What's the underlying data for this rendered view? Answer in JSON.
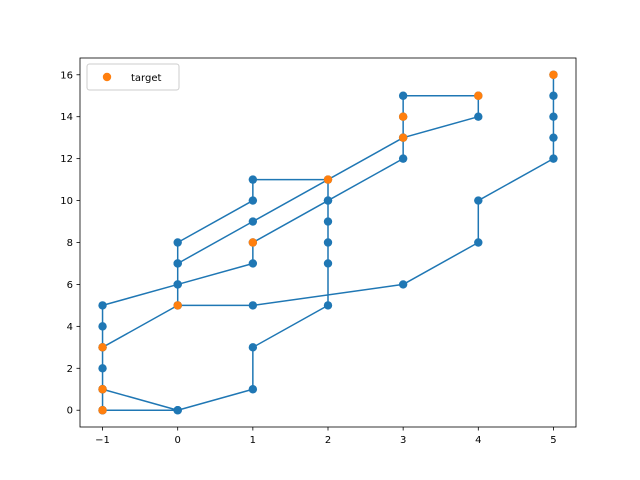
{
  "chart_data": {
    "type": "scatter",
    "xlim": [
      -1.3,
      5.3
    ],
    "ylim": [
      -0.8,
      16.8
    ],
    "xticks": [
      -1,
      0,
      1,
      2,
      3,
      4,
      5
    ],
    "yticks": [
      0,
      2,
      4,
      6,
      8,
      10,
      12,
      14,
      16
    ],
    "grid": false,
    "legend_position": "upper-left",
    "colors": {
      "path": "#1f77b4",
      "target": "#ff7f0e"
    },
    "series": [
      {
        "kind": "line-with-markers",
        "points": [
          [
            -1,
            0
          ],
          [
            0,
            0
          ],
          [
            1,
            1
          ],
          [
            1,
            3
          ],
          [
            2,
            5
          ],
          [
            2,
            7
          ],
          [
            2,
            8
          ],
          [
            2,
            9
          ],
          [
            2,
            10
          ],
          [
            1,
            8
          ],
          [
            1,
            7
          ],
          [
            0,
            6
          ],
          [
            -1,
            5
          ],
          [
            -1,
            4
          ],
          [
            -1,
            3
          ],
          [
            0,
            5
          ],
          [
            1,
            5
          ],
          [
            3,
            6
          ],
          [
            4,
            8
          ],
          [
            4,
            10
          ],
          [
            5,
            12
          ],
          [
            5,
            13
          ],
          [
            5,
            14
          ],
          [
            5,
            15
          ],
          [
            5,
            16
          ]
        ]
      },
      {
        "kind": "line-with-markers",
        "points": [
          [
            -1,
            0
          ],
          [
            -1,
            1
          ],
          [
            -1,
            2
          ],
          [
            -1,
            3
          ]
        ]
      },
      {
        "kind": "line-with-markers",
        "points": [
          [
            -1,
            1
          ],
          [
            0,
            0
          ]
        ]
      },
      {
        "kind": "line-with-markers",
        "points": [
          [
            0,
            5
          ],
          [
            0,
            6
          ],
          [
            0,
            7
          ],
          [
            0,
            8
          ],
          [
            1,
            10
          ],
          [
            1,
            11
          ],
          [
            2,
            11
          ],
          [
            2,
            10
          ],
          [
            3,
            12
          ],
          [
            3,
            13
          ],
          [
            3,
            14
          ],
          [
            3,
            15
          ],
          [
            4,
            15
          ],
          [
            4,
            14
          ],
          [
            3,
            13
          ],
          [
            1,
            9
          ],
          [
            0,
            7
          ]
        ]
      },
      {
        "name": "target",
        "kind": "scatter",
        "points": [
          [
            -1,
            0
          ],
          [
            -1,
            1
          ],
          [
            -1,
            3
          ],
          [
            0,
            5
          ],
          [
            1,
            8
          ],
          [
            2,
            11
          ],
          [
            3,
            13
          ],
          [
            3,
            14
          ],
          [
            4,
            15
          ],
          [
            5,
            16
          ]
        ]
      }
    ]
  }
}
